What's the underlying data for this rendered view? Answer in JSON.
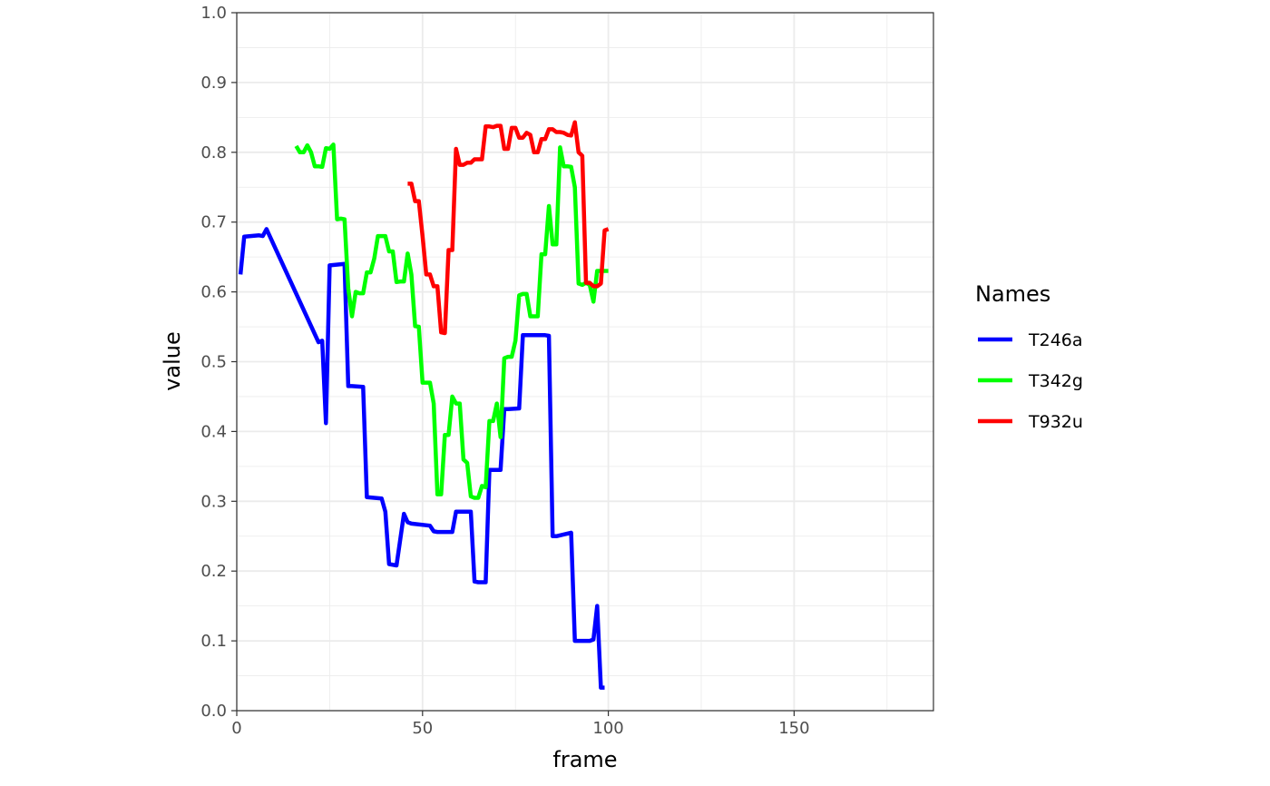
{
  "chart_data": {
    "type": "line",
    "xlabel": "frame",
    "ylabel": "value",
    "xlim": [
      0,
      187.5
    ],
    "ylim": [
      0,
      1
    ],
    "x_ticks": [
      0,
      50,
      100,
      150
    ],
    "x_tick_labels": [
      "0",
      "50",
      "100",
      "150"
    ],
    "y_ticks": [
      0,
      0.1,
      0.2,
      0.3,
      0.4,
      0.5,
      0.6,
      0.7,
      0.8,
      0.9,
      1.0
    ],
    "y_tick_labels": [
      "0.0",
      "0.1",
      "0.2",
      "0.3",
      "0.4",
      "0.5",
      "0.6",
      "0.7",
      "0.8",
      "0.9",
      "1.0"
    ],
    "grid": true,
    "legend": {
      "title": "Names",
      "placement": "right"
    },
    "series": [
      {
        "name": "T246a",
        "color": "#0000ff",
        "x": [
          1,
          2,
          6,
          7,
          8,
          22,
          23,
          24,
          25,
          29,
          30,
          31,
          34,
          35,
          39,
          40,
          41,
          43,
          45,
          46,
          47,
          52,
          53,
          54,
          58,
          59,
          63,
          64,
          65,
          67,
          68,
          69,
          71,
          72,
          73,
          76,
          77,
          78,
          83,
          84,
          85,
          86,
          90,
          91,
          95,
          96,
          97,
          98,
          99
        ],
        "y": [
          0.625,
          0.679,
          0.681,
          0.68,
          0.69,
          0.528,
          0.53,
          0.412,
          0.638,
          0.64,
          0.465,
          0.465,
          0.464,
          0.306,
          0.304,
          0.285,
          0.21,
          0.208,
          0.282,
          0.27,
          0.268,
          0.265,
          0.257,
          0.256,
          0.256,
          0.285,
          0.285,
          0.185,
          0.184,
          0.184,
          0.345,
          0.345,
          0.345,
          0.432,
          0.432,
          0.433,
          0.538,
          0.538,
          0.538,
          0.537,
          0.25,
          0.25,
          0.255,
          0.1,
          0.1,
          0.102,
          0.15,
          0.033,
          0.033
        ]
      },
      {
        "name": "T342g",
        "color": "#00ff00",
        "x": [
          16,
          17,
          18,
          19,
          20,
          21,
          22,
          23,
          24,
          25,
          26,
          27,
          28,
          29,
          30,
          31,
          32,
          33,
          34,
          35,
          36,
          37,
          38,
          39,
          40,
          41,
          42,
          43,
          44,
          45,
          46,
          47,
          48,
          49,
          50,
          51,
          52,
          53,
          54,
          55,
          56,
          57,
          58,
          59,
          60,
          61,
          62,
          63,
          64,
          65,
          66,
          67,
          68,
          69,
          70,
          71,
          72,
          73,
          74,
          75,
          76,
          77,
          78,
          79,
          80,
          81,
          82,
          83,
          84,
          85,
          86,
          87,
          88,
          89,
          90,
          91,
          92,
          93,
          94,
          95,
          96,
          97,
          98,
          99,
          100
        ],
        "y": [
          0.809,
          0.8,
          0.8,
          0.81,
          0.8,
          0.78,
          0.78,
          0.779,
          0.806,
          0.805,
          0.811,
          0.704,
          0.705,
          0.704,
          0.605,
          0.565,
          0.6,
          0.598,
          0.598,
          0.628,
          0.628,
          0.648,
          0.68,
          0.68,
          0.68,
          0.658,
          0.658,
          0.614,
          0.615,
          0.615,
          0.655,
          0.625,
          0.551,
          0.55,
          0.47,
          0.47,
          0.47,
          0.44,
          0.31,
          0.31,
          0.395,
          0.395,
          0.45,
          0.44,
          0.44,
          0.36,
          0.355,
          0.307,
          0.305,
          0.305,
          0.322,
          0.32,
          0.415,
          0.415,
          0.44,
          0.392,
          0.505,
          0.507,
          0.507,
          0.53,
          0.595,
          0.597,
          0.597,
          0.565,
          0.565,
          0.565,
          0.654,
          0.654,
          0.723,
          0.668,
          0.668,
          0.807,
          0.78,
          0.78,
          0.779,
          0.75,
          0.612,
          0.61,
          0.613,
          0.61,
          0.586,
          0.63,
          0.63,
          0.63,
          0.63
        ]
      },
      {
        "name": "T932u",
        "color": "#ff0000",
        "x": [
          46,
          47,
          48,
          49,
          50,
          51,
          52,
          53,
          54,
          55,
          56,
          57,
          58,
          59,
          60,
          61,
          62,
          63,
          64,
          65,
          66,
          67,
          68,
          69,
          70,
          71,
          72,
          73,
          74,
          75,
          76,
          77,
          78,
          79,
          80,
          81,
          82,
          83,
          84,
          85,
          86,
          87,
          88,
          89,
          90,
          91,
          92,
          93,
          94,
          95,
          96,
          97,
          98,
          99,
          100
        ],
        "y": [
          0.755,
          0.755,
          0.73,
          0.73,
          0.68,
          0.625,
          0.625,
          0.608,
          0.608,
          0.542,
          0.541,
          0.66,
          0.66,
          0.805,
          0.782,
          0.782,
          0.785,
          0.785,
          0.79,
          0.79,
          0.79,
          0.837,
          0.837,
          0.836,
          0.838,
          0.838,
          0.805,
          0.805,
          0.835,
          0.835,
          0.821,
          0.821,
          0.828,
          0.825,
          0.8,
          0.8,
          0.819,
          0.819,
          0.833,
          0.833,
          0.829,
          0.829,
          0.828,
          0.825,
          0.824,
          0.843,
          0.8,
          0.795,
          0.613,
          0.613,
          0.608,
          0.608,
          0.612,
          0.688,
          0.69
        ]
      }
    ]
  }
}
